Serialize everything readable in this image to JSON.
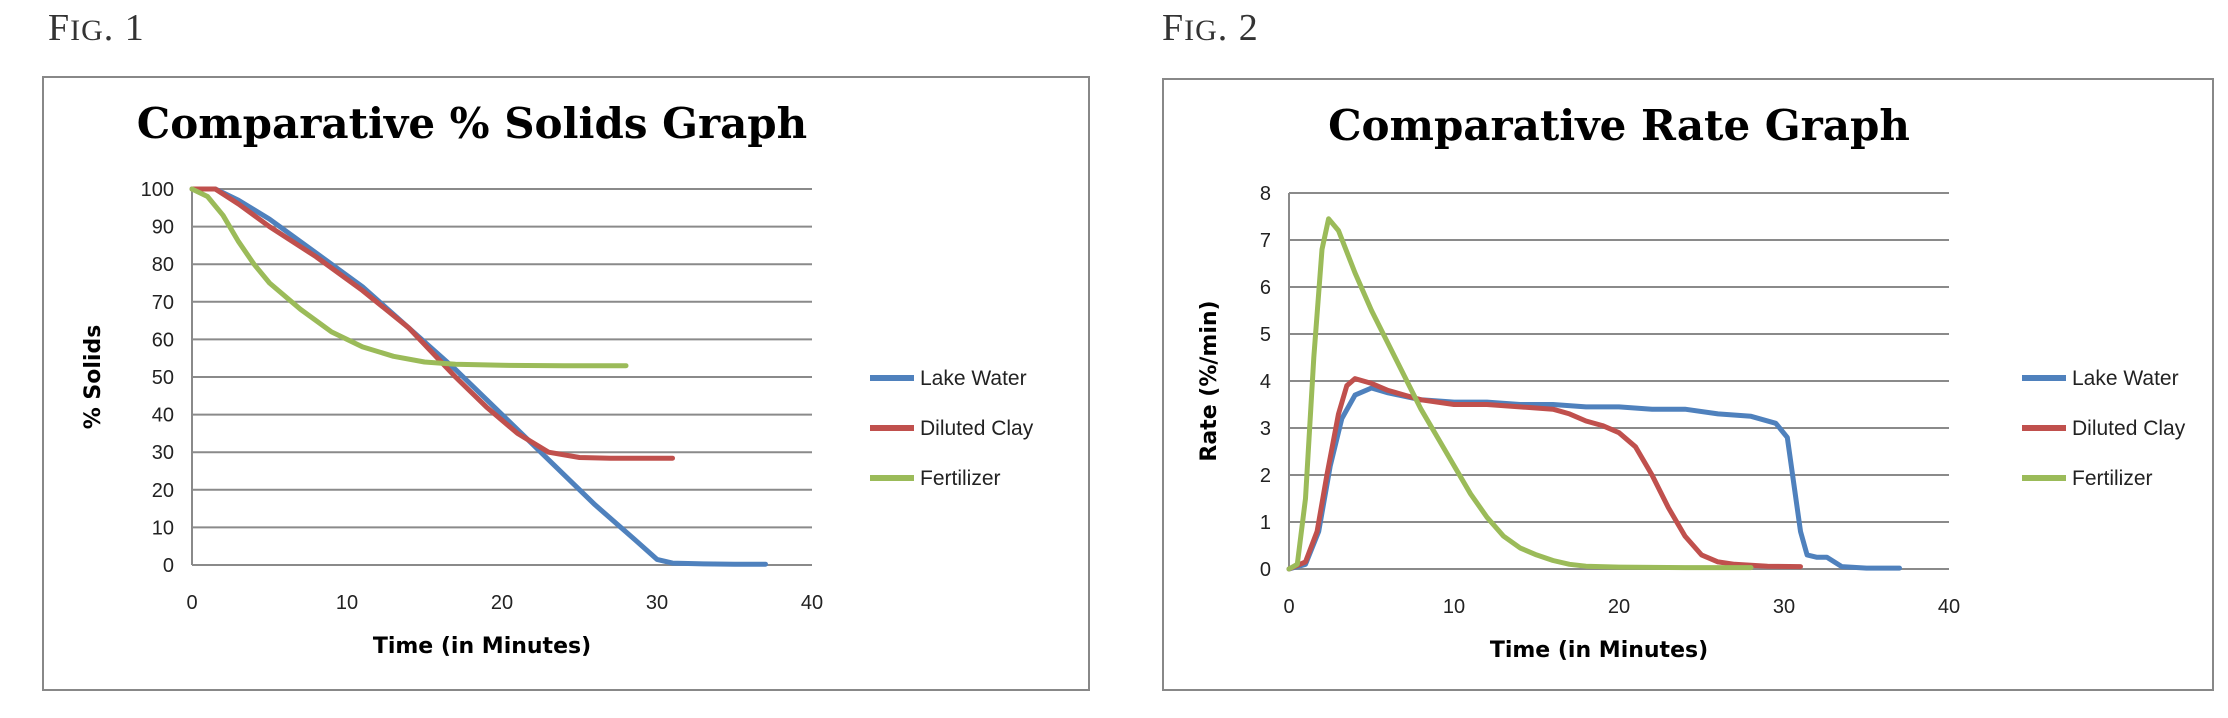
{
  "figures": [
    {
      "label_first": "F",
      "label_rest": "IG",
      "label_num": ". 1"
    },
    {
      "label_first": "F",
      "label_rest": "IG",
      "label_num": ". 2"
    }
  ],
  "chart_data": [
    {
      "type": "line",
      "title": "Comparative % Solids Graph",
      "xlabel": "Time (in Minutes)",
      "ylabel": "% Solids",
      "xlim": [
        0,
        40
      ],
      "ylim": [
        0,
        100
      ],
      "xticks": [
        0,
        10,
        20,
        30,
        40
      ],
      "yticks": [
        0,
        10,
        20,
        30,
        40,
        50,
        60,
        70,
        80,
        90,
        100
      ],
      "grid": "horizontal",
      "legend": "right",
      "series": [
        {
          "name": "Lake Water",
          "color": "#4f81bd",
          "points": [
            [
              0,
              100
            ],
            [
              1.5,
              100
            ],
            [
              3,
              97
            ],
            [
              5,
              92
            ],
            [
              8,
              83
            ],
            [
              11,
              74
            ],
            [
              14,
              63
            ],
            [
              17,
              52
            ],
            [
              20,
              40
            ],
            [
              23,
              28
            ],
            [
              26,
              16
            ],
            [
              28.5,
              7
            ],
            [
              30,
              1.5
            ],
            [
              31,
              0.5
            ],
            [
              33,
              0.3
            ],
            [
              35,
              0.2
            ],
            [
              37,
              0.2
            ]
          ]
        },
        {
          "name": "Diluted Clay",
          "color": "#c0504d",
          "points": [
            [
              0,
              100
            ],
            [
              1.5,
              100
            ],
            [
              3,
              96
            ],
            [
              5,
              90
            ],
            [
              8,
              82
            ],
            [
              11,
              73
            ],
            [
              14,
              63
            ],
            [
              17,
              50
            ],
            [
              19,
              42
            ],
            [
              21,
              35
            ],
            [
              23,
              30
            ],
            [
              25,
              28.6
            ],
            [
              27,
              28.4
            ],
            [
              29,
              28.4
            ],
            [
              31,
              28.4
            ]
          ]
        },
        {
          "name": "Fertilizer",
          "color": "#9bbb59",
          "points": [
            [
              0,
              100
            ],
            [
              1,
              98
            ],
            [
              2,
              93
            ],
            [
              3,
              86
            ],
            [
              4,
              80
            ],
            [
              5,
              75
            ],
            [
              7,
              68
            ],
            [
              9,
              62
            ],
            [
              11,
              58
            ],
            [
              13,
              55.5
            ],
            [
              15,
              54
            ],
            [
              17,
              53.4
            ],
            [
              20,
              53.1
            ],
            [
              24,
              53
            ],
            [
              28,
              53
            ]
          ]
        }
      ]
    },
    {
      "type": "line",
      "title": "Comparative Rate Graph",
      "xlabel": "Time (in Minutes)",
      "ylabel": "Rate (%/min)",
      "xlim": [
        0,
        40
      ],
      "ylim": [
        0,
        8
      ],
      "xticks": [
        0,
        10,
        20,
        30,
        40
      ],
      "yticks": [
        0,
        1,
        2,
        3,
        4,
        5,
        6,
        7,
        8
      ],
      "grid": "horizontal",
      "legend": "right",
      "series": [
        {
          "name": "Lake Water",
          "color": "#4f81bd",
          "points": [
            [
              0,
              0
            ],
            [
              1,
              0.1
            ],
            [
              1.8,
              0.8
            ],
            [
              2.5,
              2.2
            ],
            [
              3.2,
              3.2
            ],
            [
              4,
              3.7
            ],
            [
              5,
              3.85
            ],
            [
              6,
              3.75
            ],
            [
              8,
              3.6
            ],
            [
              10,
              3.55
            ],
            [
              12,
              3.55
            ],
            [
              14,
              3.5
            ],
            [
              16,
              3.5
            ],
            [
              18,
              3.45
            ],
            [
              20,
              3.45
            ],
            [
              22,
              3.4
            ],
            [
              24,
              3.4
            ],
            [
              26,
              3.3
            ],
            [
              28,
              3.25
            ],
            [
              29.5,
              3.1
            ],
            [
              30.2,
              2.8
            ],
            [
              30.6,
              1.8
            ],
            [
              31,
              0.8
            ],
            [
              31.4,
              0.3
            ],
            [
              32,
              0.25
            ],
            [
              32.6,
              0.25
            ],
            [
              33.5,
              0.05
            ],
            [
              35,
              0.02
            ],
            [
              37,
              0.02
            ]
          ]
        },
        {
          "name": "Diluted Clay",
          "color": "#c0504d",
          "points": [
            [
              0,
              0
            ],
            [
              1,
              0.15
            ],
            [
              1.7,
              0.8
            ],
            [
              2.3,
              2.0
            ],
            [
              3,
              3.3
            ],
            [
              3.5,
              3.9
            ],
            [
              4,
              4.05
            ],
            [
              5,
              3.95
            ],
            [
              6,
              3.8
            ],
            [
              7,
              3.7
            ],
            [
              8,
              3.6
            ],
            [
              9,
              3.55
            ],
            [
              10,
              3.5
            ],
            [
              12,
              3.5
            ],
            [
              14,
              3.45
            ],
            [
              16,
              3.4
            ],
            [
              17,
              3.3
            ],
            [
              18,
              3.15
            ],
            [
              19,
              3.05
            ],
            [
              20,
              2.9
            ],
            [
              21,
              2.6
            ],
            [
              22,
              2.0
            ],
            [
              23,
              1.3
            ],
            [
              24,
              0.7
            ],
            [
              25,
              0.3
            ],
            [
              26,
              0.15
            ],
            [
              27,
              0.1
            ],
            [
              28,
              0.08
            ],
            [
              29,
              0.06
            ],
            [
              31,
              0.05
            ]
          ]
        },
        {
          "name": "Fertilizer",
          "color": "#9bbb59",
          "points": [
            [
              0,
              0
            ],
            [
              0.5,
              0.1
            ],
            [
              1,
              1.5
            ],
            [
              1.5,
              4.5
            ],
            [
              2,
              6.8
            ],
            [
              2.4,
              7.45
            ],
            [
              3,
              7.2
            ],
            [
              4,
              6.3
            ],
            [
              5,
              5.5
            ],
            [
              6,
              4.8
            ],
            [
              7,
              4.1
            ],
            [
              8,
              3.4
            ],
            [
              9,
              2.8
            ],
            [
              10,
              2.2
            ],
            [
              11,
              1.6
            ],
            [
              12,
              1.1
            ],
            [
              13,
              0.7
            ],
            [
              14,
              0.45
            ],
            [
              15,
              0.3
            ],
            [
              16,
              0.18
            ],
            [
              17,
              0.1
            ],
            [
              18,
              0.06
            ],
            [
              20,
              0.04
            ],
            [
              24,
              0.03
            ],
            [
              28,
              0.03
            ]
          ]
        }
      ]
    }
  ]
}
